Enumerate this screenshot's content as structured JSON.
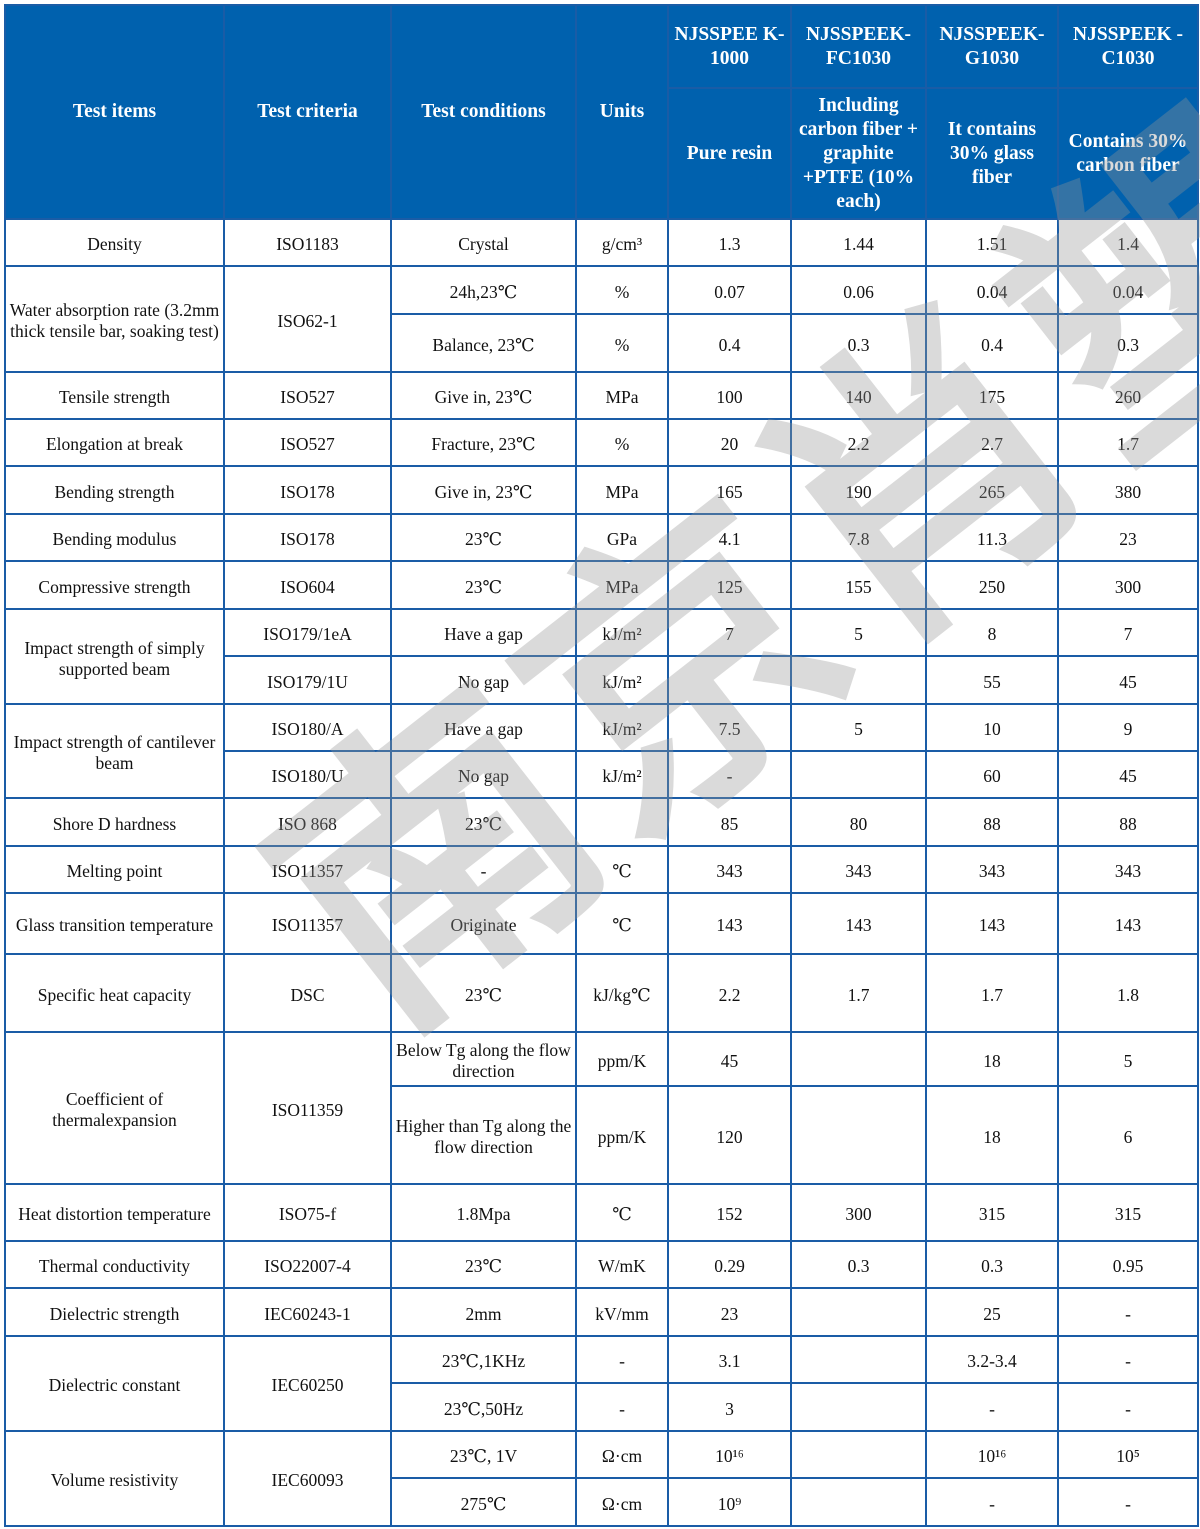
{
  "header": {
    "test_items": "Test items",
    "test_criteria": "Test criteria",
    "test_conditions": "Test conditions",
    "units": "Units",
    "grades": [
      {
        "name": "NJSSPEE K-1000",
        "desc": "Pure resin"
      },
      {
        "name": "NJSSPEEK- FC1030",
        "desc": "Including carbon fiber + graphite +PTFE (10% each)"
      },
      {
        "name": "NJSSPEEK- G1030",
        "desc": "It contains 30% glass fiber"
      },
      {
        "name": "NJSSPEEK -C1030",
        "desc": "Contains 30% carbon fiber"
      }
    ]
  },
  "watermark": "南京肖塑",
  "colors": {
    "header_bg": "#0061ae",
    "border": "#1a5ca6"
  },
  "table": {
    "rows": [
      {
        "cells": [
          "Density",
          "ISO1183",
          "Crystal",
          "g/cm³",
          "1.3",
          "1.44",
          "1.51",
          "1.4"
        ]
      },
      {
        "cells": [
          {
            "v": "Water absorption rate (3.2mm thick tensile bar, soaking test)",
            "rs": 2
          },
          {
            "v": "ISO62-1",
            "rs": 2
          },
          "24h,23℃",
          "%",
          "0.07",
          "0.06",
          "0.04",
          "0.04"
        ]
      },
      {
        "cells": [
          "Balance, 23℃",
          "%",
          "0.4",
          "0.3",
          "0.4",
          "0.3"
        ]
      },
      {
        "cells": [
          "Tensile strength",
          "ISO527",
          "Give in, 23℃",
          "MPa",
          "100",
          "140",
          "175",
          "260"
        ]
      },
      {
        "cells": [
          "Elongation at break",
          "ISO527",
          "Fracture, 23℃",
          "%",
          "20",
          "2.2",
          "2.7",
          "1.7"
        ]
      },
      {
        "cells": [
          "Bending strength",
          "ISO178",
          "Give in, 23℃",
          "MPa",
          "165",
          "190",
          "265",
          "380"
        ]
      },
      {
        "cells": [
          "Bending modulus",
          "ISO178",
          "23℃",
          "GPa",
          "4.1",
          "7.8",
          "11.3",
          "23"
        ]
      },
      {
        "cells": [
          "Compressive strength",
          "ISO604",
          "23℃",
          "MPa",
          "125",
          "155",
          "250",
          "300"
        ]
      },
      {
        "cells": [
          {
            "v": "Impact strength of simply supported beam",
            "rs": 2
          },
          "ISO179/1eA",
          "Have a gap",
          "kJ/m²",
          "7",
          "5",
          "8",
          "7"
        ]
      },
      {
        "cells": [
          "ISO179/1U",
          "No gap",
          "kJ/m²",
          "",
          "",
          "55",
          "45"
        ]
      },
      {
        "cells": [
          {
            "v": "Impact strength of cantilever beam",
            "rs": 2
          },
          "ISO180/A",
          "Have a gap",
          "kJ/m²",
          "7.5",
          "5",
          "10",
          "9"
        ]
      },
      {
        "cells": [
          "ISO180/U",
          "No gap",
          "kJ/m²",
          "-",
          "",
          "60",
          "45"
        ]
      },
      {
        "cells": [
          "Shore D hardness",
          "ISO 868",
          "23℃",
          "",
          "85",
          "80",
          "88",
          "88"
        ]
      },
      {
        "cells": [
          "Melting point",
          "ISO11357",
          "-",
          "℃",
          "343",
          "343",
          "343",
          "343"
        ]
      },
      {
        "cells": [
          "Glass transition temperature",
          "ISO11357",
          "Originate",
          "℃",
          "143",
          "143",
          "143",
          "143"
        ]
      },
      {
        "cells": [
          "Specific heat capacity",
          "DSC",
          "23℃",
          "kJ/kg℃",
          "2.2",
          "1.7",
          "1.7",
          "1.8"
        ]
      },
      {
        "cells": [
          {
            "v": "Coefficient of thermalexpansion",
            "rs": 2
          },
          {
            "v": "ISO11359",
            "rs": 2
          },
          "Below Tg along the flow direction",
          "ppm/K",
          "45",
          "",
          "18",
          "5"
        ]
      },
      {
        "cells": [
          "Higher than Tg along the flow direction",
          "ppm/K",
          "120",
          "",
          "18",
          "6"
        ]
      },
      {
        "cells": [
          "Heat distortion temperature",
          "ISO75-f",
          "1.8Mpa",
          "℃",
          "152",
          "300",
          "315",
          "315"
        ]
      },
      {
        "cells": [
          "Thermal conductivity",
          "ISO22007-4",
          "23℃",
          "W/mK",
          "0.29",
          "0.3",
          "0.3",
          "0.95"
        ]
      },
      {
        "cells": [
          "Dielectric strength",
          "IEC60243-1",
          "2mm",
          "kV/mm",
          "23",
          "",
          "25",
          "-"
        ]
      },
      {
        "cells": [
          {
            "v": "Dielectric constant",
            "rs": 2
          },
          {
            "v": "IEC60250",
            "rs": 2
          },
          "23℃,1KHz",
          "-",
          "3.1",
          "",
          "3.2-3.4",
          "-"
        ]
      },
      {
        "cells": [
          "23℃,50Hz",
          "-",
          "3",
          "",
          "-",
          "-"
        ]
      },
      {
        "cells": [
          {
            "v": "Volume resistivity",
            "rs": 2
          },
          {
            "v": "IEC60093",
            "rs": 2
          },
          "23℃, 1V",
          "Ω·cm",
          "10¹⁶",
          "",
          "10¹⁶",
          "10⁵"
        ]
      },
      {
        "cells": [
          "275℃",
          "Ω·cm",
          "10⁹",
          "",
          "-",
          "-"
        ]
      }
    ]
  }
}
